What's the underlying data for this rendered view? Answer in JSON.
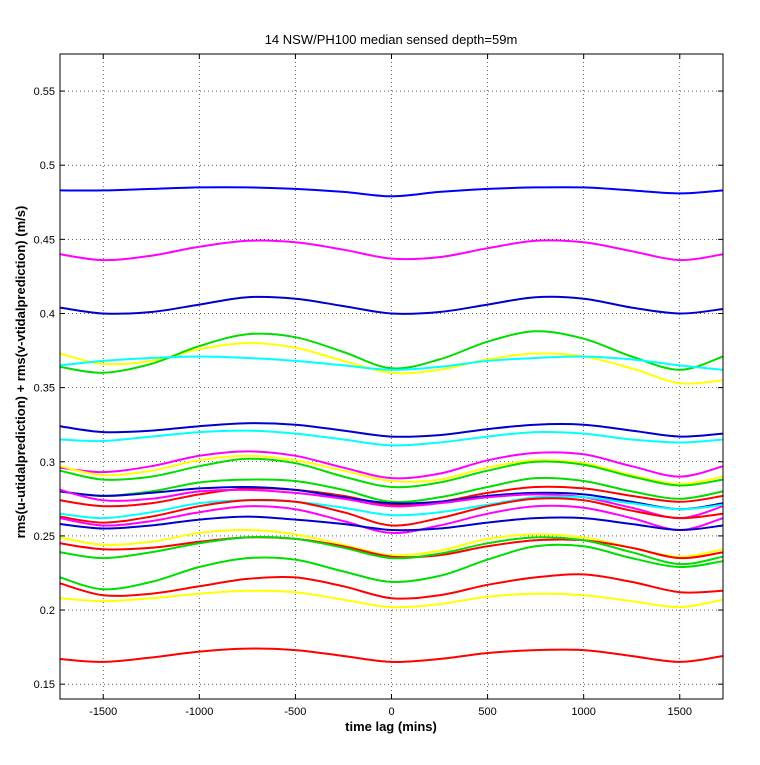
{
  "chart_data": {
    "type": "line",
    "title": "14 NSW/PH100 median sensed depth=59m",
    "xlabel": "time lag (mins)",
    "ylabel": "rms(u-utidalprediction) + rms(v-vtidalprediction) (m/s)",
    "xlim": [
      -1725,
      1725
    ],
    "ylim": [
      0.14,
      0.575
    ],
    "xticks": [
      -1500,
      -1000,
      -500,
      0,
      500,
      1000,
      1500
    ],
    "xtick_labels": [
      "-1500",
      "-1000",
      "-500",
      "0",
      "500",
      "1000",
      "1500"
    ],
    "yticks": [
      0.15,
      0.2,
      0.25,
      0.3,
      0.35,
      0.4,
      0.45,
      0.5,
      0.55
    ],
    "ytick_labels": [
      "0.15",
      "0.2",
      "0.25",
      "0.3",
      "0.35",
      "0.4",
      "0.45",
      "0.5",
      "0.55"
    ],
    "grid": true,
    "grid_style": "dotted",
    "x": [
      -1725,
      -1500,
      -1250,
      -1000,
      -750,
      -500,
      -250,
      0,
      250,
      500,
      750,
      1000,
      1250,
      1500,
      1725
    ],
    "series": [
      {
        "color": "#0000ff",
        "values": [
          0.483,
          0.483,
          0.484,
          0.485,
          0.485,
          0.484,
          0.482,
          0.479,
          0.482,
          0.484,
          0.485,
          0.485,
          0.483,
          0.481,
          0.483
        ]
      },
      {
        "color": "#ff00ff",
        "values": [
          0.44,
          0.436,
          0.439,
          0.445,
          0.449,
          0.448,
          0.443,
          0.437,
          0.438,
          0.444,
          0.449,
          0.448,
          0.442,
          0.436,
          0.44
        ]
      },
      {
        "color": "#0000cc",
        "values": [
          0.404,
          0.4,
          0.401,
          0.406,
          0.411,
          0.41,
          0.405,
          0.4,
          0.401,
          0.406,
          0.411,
          0.41,
          0.404,
          0.4,
          0.403
        ]
      },
      {
        "color": "#ffff00",
        "values": [
          0.373,
          0.366,
          0.368,
          0.376,
          0.38,
          0.377,
          0.368,
          0.36,
          0.362,
          0.369,
          0.373,
          0.371,
          0.363,
          0.353,
          0.355
        ]
      },
      {
        "color": "#00dd00",
        "values": [
          0.364,
          0.36,
          0.366,
          0.378,
          0.386,
          0.384,
          0.374,
          0.363,
          0.369,
          0.381,
          0.388,
          0.383,
          0.371,
          0.362,
          0.371
        ]
      },
      {
        "color": "#00ffff",
        "values": [
          0.365,
          0.368,
          0.37,
          0.371,
          0.37,
          0.368,
          0.365,
          0.362,
          0.364,
          0.368,
          0.37,
          0.371,
          0.369,
          0.365,
          0.362
        ]
      },
      {
        "color": "#0000cc",
        "values": [
          0.324,
          0.32,
          0.321,
          0.324,
          0.326,
          0.325,
          0.321,
          0.317,
          0.318,
          0.322,
          0.325,
          0.325,
          0.321,
          0.317,
          0.319
        ]
      },
      {
        "color": "#00ffff",
        "values": [
          0.315,
          0.314,
          0.317,
          0.32,
          0.321,
          0.319,
          0.315,
          0.311,
          0.313,
          0.317,
          0.32,
          0.319,
          0.315,
          0.313,
          0.315
        ]
      },
      {
        "color": "#ff00ff",
        "values": [
          0.296,
          0.293,
          0.297,
          0.304,
          0.307,
          0.304,
          0.296,
          0.289,
          0.292,
          0.301,
          0.306,
          0.305,
          0.297,
          0.29,
          0.297
        ]
      },
      {
        "color": "#ffff00",
        "values": [
          0.297,
          0.291,
          0.294,
          0.301,
          0.304,
          0.301,
          0.294,
          0.287,
          0.288,
          0.296,
          0.301,
          0.299,
          0.291,
          0.285,
          0.29
        ]
      },
      {
        "color": "#00dd00",
        "values": [
          0.294,
          0.288,
          0.29,
          0.297,
          0.302,
          0.299,
          0.29,
          0.283,
          0.286,
          0.294,
          0.3,
          0.298,
          0.29,
          0.284,
          0.288
        ]
      },
      {
        "color": "#00dd00",
        "values": [
          0.28,
          0.277,
          0.28,
          0.286,
          0.288,
          0.287,
          0.281,
          0.273,
          0.276,
          0.283,
          0.289,
          0.287,
          0.28,
          0.275,
          0.28
        ]
      },
      {
        "color": "#ff0000",
        "values": [
          0.274,
          0.27,
          0.272,
          0.278,
          0.282,
          0.281,
          0.277,
          0.271,
          0.273,
          0.279,
          0.283,
          0.282,
          0.277,
          0.273,
          0.277
        ]
      },
      {
        "color": "#0000cc",
        "values": [
          0.28,
          0.277,
          0.279,
          0.282,
          0.283,
          0.281,
          0.276,
          0.272,
          0.273,
          0.277,
          0.279,
          0.278,
          0.273,
          0.268,
          0.272
        ]
      },
      {
        "color": "#ff00ff",
        "values": [
          0.281,
          0.274,
          0.275,
          0.28,
          0.281,
          0.279,
          0.275,
          0.27,
          0.272,
          0.276,
          0.278,
          0.276,
          0.269,
          0.262,
          0.27
        ]
      },
      {
        "color": "#00ffff",
        "values": [
          0.265,
          0.262,
          0.266,
          0.272,
          0.274,
          0.273,
          0.269,
          0.264,
          0.266,
          0.271,
          0.276,
          0.276,
          0.272,
          0.268,
          0.271
        ]
      },
      {
        "color": "#ff0000",
        "values": [
          0.263,
          0.259,
          0.263,
          0.27,
          0.274,
          0.273,
          0.266,
          0.257,
          0.262,
          0.27,
          0.275,
          0.274,
          0.267,
          0.262,
          0.265
        ]
      },
      {
        "color": "#ff00ff",
        "values": [
          0.262,
          0.257,
          0.26,
          0.266,
          0.27,
          0.268,
          0.26,
          0.252,
          0.257,
          0.265,
          0.27,
          0.269,
          0.262,
          0.254,
          0.262
        ]
      },
      {
        "color": "#0000cc",
        "values": [
          0.258,
          0.255,
          0.257,
          0.261,
          0.263,
          0.261,
          0.258,
          0.254,
          0.255,
          0.259,
          0.262,
          0.262,
          0.258,
          0.254,
          0.257
        ]
      },
      {
        "color": "#ffff00",
        "values": [
          0.249,
          0.244,
          0.246,
          0.252,
          0.254,
          0.251,
          0.244,
          0.237,
          0.24,
          0.248,
          0.251,
          0.249,
          0.242,
          0.236,
          0.241
        ]
      },
      {
        "color": "#ff0000",
        "values": [
          0.245,
          0.241,
          0.242,
          0.246,
          0.249,
          0.248,
          0.243,
          0.236,
          0.237,
          0.243,
          0.247,
          0.247,
          0.242,
          0.235,
          0.239
        ]
      },
      {
        "color": "#00dd00",
        "values": [
          0.239,
          0.235,
          0.239,
          0.245,
          0.249,
          0.248,
          0.242,
          0.235,
          0.238,
          0.245,
          0.249,
          0.247,
          0.239,
          0.231,
          0.236
        ]
      },
      {
        "color": "#00dd00",
        "values": [
          0.222,
          0.214,
          0.219,
          0.229,
          0.235,
          0.234,
          0.226,
          0.219,
          0.223,
          0.234,
          0.243,
          0.243,
          0.235,
          0.229,
          0.233
        ]
      },
      {
        "color": "#ff0000",
        "values": [
          0.218,
          0.21,
          0.211,
          0.216,
          0.221,
          0.222,
          0.216,
          0.208,
          0.21,
          0.217,
          0.222,
          0.224,
          0.219,
          0.212,
          0.213
        ]
      },
      {
        "color": "#ffff00",
        "values": [
          0.208,
          0.206,
          0.208,
          0.211,
          0.213,
          0.212,
          0.207,
          0.202,
          0.204,
          0.209,
          0.211,
          0.21,
          0.206,
          0.202,
          0.207
        ]
      },
      {
        "color": "#ff0000",
        "values": [
          0.167,
          0.165,
          0.168,
          0.172,
          0.174,
          0.173,
          0.169,
          0.165,
          0.167,
          0.171,
          0.173,
          0.173,
          0.169,
          0.165,
          0.169
        ]
      }
    ]
  }
}
